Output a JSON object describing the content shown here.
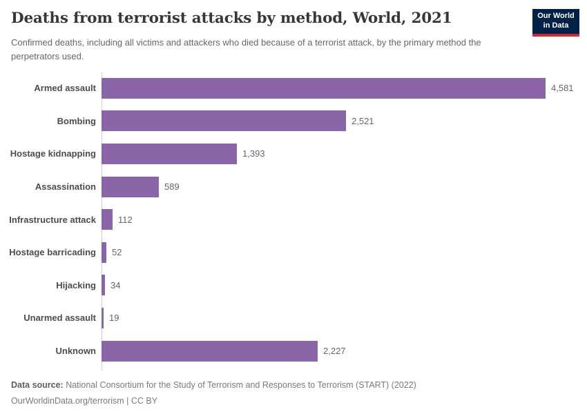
{
  "header": {
    "title": "Deaths from terrorist attacks by method, World, 2021",
    "subtitle": "Confirmed deaths, including all victims and attackers who died because of a terrorist attack, by the primary method the perpetrators used.",
    "logo": {
      "line1": "Our World",
      "line2": "in Data",
      "bg_color": "#002147",
      "strip_color": "#d8262c"
    }
  },
  "chart_data": {
    "type": "bar",
    "orientation": "horizontal",
    "title": "Deaths from terrorist attacks by method, World, 2021",
    "categories": [
      "Armed assault",
      "Bombing",
      "Hostage kidnapping",
      "Assassination",
      "Infrastructure attack",
      "Hostage barricading",
      "Hijacking",
      "Unarmed assault",
      "Unknown"
    ],
    "values": [
      4581,
      2521,
      1393,
      589,
      112,
      52,
      34,
      19,
      2227
    ],
    "value_labels": [
      "4,581",
      "2,521",
      "1,393",
      "589",
      "112",
      "52",
      "34",
      "19",
      "2,227"
    ],
    "xlim": [
      0,
      4581
    ],
    "grid": false,
    "legend": "none",
    "bar_color": "#8a66a9",
    "axis_color": "#cccccc"
  },
  "footer": {
    "datasource_label": "Data source:",
    "datasource_text": " National Consortium for the Study of Terrorism and Responses to Terrorism (START) (2022)",
    "url_text": "OurWorldinData.org/terrorism",
    "license_sep": " | ",
    "license_text": "CC BY"
  }
}
